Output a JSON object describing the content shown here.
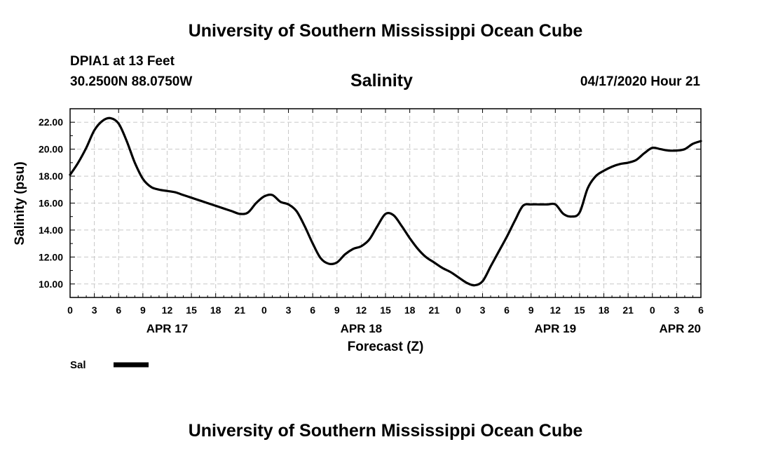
{
  "header": {
    "title": "University of Southern Mississippi Ocean Cube",
    "station": "DPIA1 at 13 Feet",
    "coords": "30.2500N 88.0750W",
    "variable": "Salinity",
    "datetime": "04/17/2020 Hour 21"
  },
  "footer": {
    "title": "University of Southern Mississippi Ocean Cube"
  },
  "chart_data": {
    "type": "line",
    "title": "Salinity",
    "xlabel": "Forecast (Z)",
    "ylabel": "Salinity (psu)",
    "xlim": [
      0,
      78
    ],
    "ylim": [
      9.0,
      23.0
    ],
    "grid": true,
    "legend_position": "bottom-left",
    "x_ticks": [
      0,
      3,
      6,
      9,
      12,
      15,
      18,
      21,
      24,
      27,
      30,
      33,
      36,
      39,
      42,
      45,
      48,
      51,
      54,
      57,
      60,
      63,
      66,
      69,
      72,
      75,
      78
    ],
    "x_tick_labels": [
      "0",
      "3",
      "6",
      "9",
      "12",
      "15",
      "18",
      "21",
      "0",
      "3",
      "6",
      "9",
      "12",
      "15",
      "18",
      "21",
      "0",
      "3",
      "6",
      "9",
      "12",
      "15",
      "18",
      "21",
      "0",
      "3",
      "6"
    ],
    "date_labels": [
      {
        "x": 12,
        "label": "APR 17"
      },
      {
        "x": 36,
        "label": "APR 18"
      },
      {
        "x": 60,
        "label": "APR 19"
      },
      {
        "x": 78,
        "label": "APR 20"
      }
    ],
    "y_ticks": [
      10,
      12,
      14,
      16,
      18,
      20,
      22
    ],
    "y_tick_labels": [
      "10.00",
      "12.00",
      "14.00",
      "16.00",
      "18.00",
      "20.00",
      "22.00"
    ],
    "series": [
      {
        "name": "Sal",
        "color": "#000000",
        "x": [
          0,
          1,
          2,
          3,
          4,
          5,
          6,
          7,
          8,
          9,
          10,
          11,
          12,
          13,
          14,
          15,
          16,
          17,
          18,
          19,
          20,
          21,
          22,
          23,
          24,
          25,
          26,
          27,
          28,
          29,
          30,
          31,
          32,
          33,
          34,
          35,
          36,
          37,
          38,
          39,
          40,
          41,
          42,
          43,
          44,
          45,
          46,
          47,
          48,
          49,
          50,
          51,
          52,
          53,
          54,
          55,
          56,
          57,
          58,
          59,
          60,
          61,
          62,
          63,
          64,
          65,
          66,
          67,
          68,
          69,
          70,
          71,
          72,
          73,
          74,
          75,
          76,
          77,
          78
        ],
        "values": [
          18.1,
          19.0,
          20.1,
          21.4,
          22.1,
          22.3,
          21.9,
          20.6,
          19.0,
          17.8,
          17.2,
          17.0,
          16.9,
          16.8,
          16.6,
          16.4,
          16.2,
          16.0,
          15.8,
          15.6,
          15.4,
          15.2,
          15.3,
          16.0,
          16.5,
          16.6,
          16.1,
          15.9,
          15.4,
          14.3,
          13.0,
          11.9,
          11.5,
          11.6,
          12.2,
          12.6,
          12.8,
          13.3,
          14.3,
          15.2,
          15.1,
          14.3,
          13.4,
          12.6,
          12.0,
          11.6,
          11.2,
          10.9,
          10.5,
          10.1,
          9.9,
          10.2,
          11.3,
          12.4,
          13.5,
          14.7,
          15.8,
          15.9,
          15.9,
          15.9,
          15.9,
          15.2,
          15.0,
          15.3,
          17.1,
          18.0,
          18.4,
          18.7,
          18.9,
          19.0,
          19.2,
          19.7,
          20.1,
          20.0,
          19.9,
          19.9,
          20.0,
          20.4,
          20.6
        ]
      }
    ]
  }
}
